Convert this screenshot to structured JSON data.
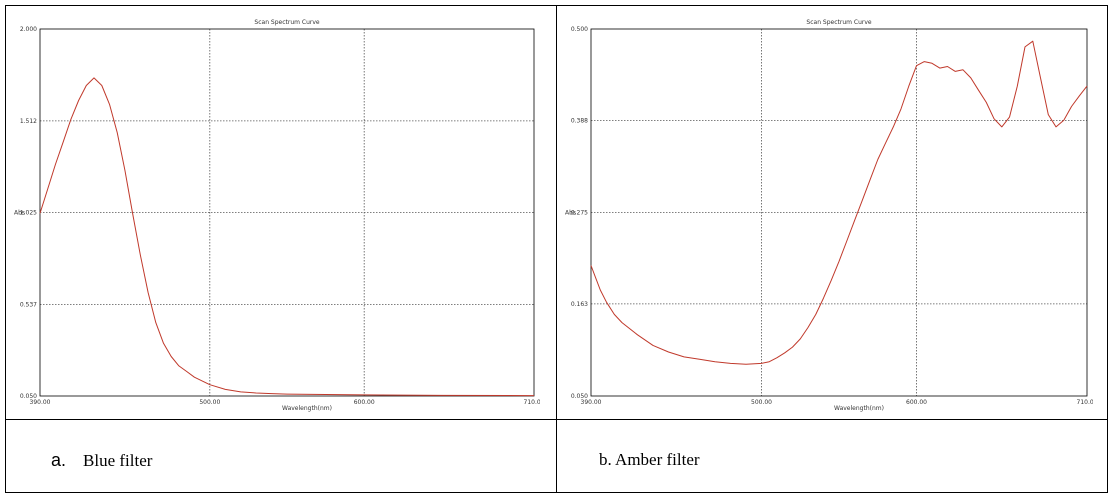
{
  "captions": {
    "a_marker": "a.",
    "a_text": "Blue filter",
    "b": "b. Amber filter"
  },
  "colors": {
    "curve": "#c0392b",
    "grid": "#555555",
    "frame": "#000000"
  },
  "chart_data": [
    {
      "type": "line",
      "title": "Scan Spectrum Curve",
      "xlabel": "Wavelength(nm)",
      "ylabel": "Abs",
      "xlim": [
        390,
        710
      ],
      "ylim": [
        0.05,
        2.0
      ],
      "x_ticks": [
        390,
        500,
        600,
        710
      ],
      "x_tick_labels": [
        "390.00",
        "500.00",
        "600.00",
        "710.00"
      ],
      "y_ticks": [
        0.05,
        0.537,
        1.025,
        1.512,
        2.0
      ],
      "y_tick_labels": [
        "0.050",
        "0.537",
        "1.025",
        "1.512",
        "2.000"
      ],
      "grid": true,
      "series": [
        {
          "x": [
            390,
            395,
            400,
            405,
            410,
            415,
            420,
            425,
            430,
            435,
            440,
            445,
            450,
            455,
            460,
            465,
            470,
            475,
            480,
            485,
            490,
            495,
            500,
            510,
            520,
            530,
            540,
            550,
            575,
            600,
            650,
            710
          ],
          "y": [
            1.02,
            1.15,
            1.28,
            1.4,
            1.52,
            1.62,
            1.7,
            1.74,
            1.7,
            1.6,
            1.45,
            1.25,
            1.02,
            0.8,
            0.6,
            0.44,
            0.33,
            0.26,
            0.21,
            0.18,
            0.15,
            0.13,
            0.11,
            0.085,
            0.072,
            0.066,
            0.063,
            0.06,
            0.058,
            0.056,
            0.053,
            0.052
          ]
        }
      ]
    },
    {
      "type": "line",
      "title": "Scan Spectrum Curve",
      "xlabel": "Wavelength(nm)",
      "ylabel": "Abs",
      "xlim": [
        390,
        710
      ],
      "ylim": [
        0.05,
        0.5
      ],
      "x_ticks": [
        390,
        500,
        600,
        710
      ],
      "x_tick_labels": [
        "390.00",
        "500.00",
        "600.00",
        "710.00"
      ],
      "y_ticks": [
        0.05,
        0.163,
        0.275,
        0.388,
        0.5
      ],
      "y_tick_labels": [
        "0.050",
        "0.163",
        "0.275",
        "0.388",
        "0.500"
      ],
      "grid": true,
      "series": [
        {
          "x": [
            390,
            393,
            396,
            400,
            405,
            410,
            420,
            430,
            440,
            450,
            460,
            470,
            480,
            490,
            500,
            505,
            510,
            515,
            520,
            525,
            530,
            535,
            540,
            545,
            550,
            555,
            560,
            565,
            570,
            575,
            580,
            585,
            590,
            595,
            600,
            605,
            610,
            615,
            620,
            625,
            630,
            635,
            640,
            645,
            650,
            655,
            660,
            665,
            670,
            675,
            680,
            685,
            690,
            695,
            700,
            705,
            710
          ],
          "y": [
            0.21,
            0.195,
            0.18,
            0.165,
            0.15,
            0.14,
            0.125,
            0.112,
            0.104,
            0.098,
            0.095,
            0.092,
            0.09,
            0.089,
            0.09,
            0.092,
            0.097,
            0.103,
            0.11,
            0.12,
            0.134,
            0.15,
            0.17,
            0.192,
            0.215,
            0.24,
            0.265,
            0.29,
            0.315,
            0.34,
            0.36,
            0.38,
            0.402,
            0.43,
            0.455,
            0.46,
            0.458,
            0.452,
            0.454,
            0.448,
            0.45,
            0.44,
            0.425,
            0.41,
            0.39,
            0.38,
            0.392,
            0.43,
            0.478,
            0.485,
            0.44,
            0.395,
            0.38,
            0.388,
            0.405,
            0.418,
            0.43
          ]
        }
      ]
    }
  ]
}
